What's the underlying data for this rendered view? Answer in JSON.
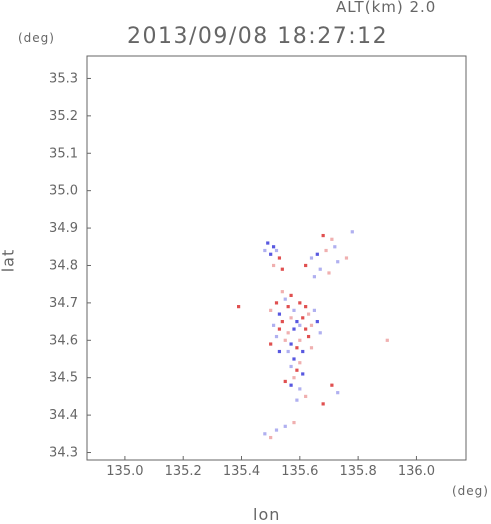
{
  "header": {
    "altitude_label": "ALT(km) 2.0",
    "timestamp": "2013/09/08 18:27:12",
    "y_unit": "(deg)",
    "x_unit": "(deg)"
  },
  "chart_data": {
    "type": "scatter",
    "title": "2013/09/08 18:27:12",
    "subtitle": "ALT(km) 2.0",
    "xlabel": "lon",
    "ylabel": "lat",
    "x_unit": "(deg)",
    "y_unit": "(deg)",
    "xlim": [
      134.87,
      136.17
    ],
    "ylim": [
      34.28,
      35.36
    ],
    "x_ticks": [
      "135.0",
      "135.2",
      "135.4",
      "135.6",
      "135.8",
      "136.0"
    ],
    "y_ticks": [
      "34.3",
      "34.4",
      "34.5",
      "34.6",
      "34.7",
      "34.8",
      "34.9",
      "35.0",
      "35.1",
      "35.2",
      "35.3"
    ],
    "grid": false,
    "colors": {
      "positive": "#e05050",
      "negative": "#5858e0",
      "weak_positive": "#f0b0b0",
      "weak_negative": "#b0b0f0"
    },
    "series": [
      {
        "points": [
          [
            135.49,
            34.86,
            "negative"
          ],
          [
            135.51,
            34.85,
            "negative"
          ],
          [
            135.5,
            34.83,
            "negative"
          ],
          [
            135.52,
            34.84,
            "weak_negative"
          ],
          [
            135.53,
            34.82,
            "positive"
          ],
          [
            135.51,
            34.8,
            "weak_positive"
          ],
          [
            135.54,
            34.79,
            "positive"
          ],
          [
            135.48,
            34.84,
            "weak_negative"
          ],
          [
            135.68,
            34.88,
            "positive"
          ],
          [
            135.71,
            34.87,
            "weak_positive"
          ],
          [
            135.72,
            34.85,
            "weak_negative"
          ],
          [
            135.69,
            34.84,
            "weak_positive"
          ],
          [
            135.66,
            34.83,
            "negative"
          ],
          [
            135.64,
            34.82,
            "weak_negative"
          ],
          [
            135.62,
            34.8,
            "positive"
          ],
          [
            135.67,
            34.79,
            "weak_negative"
          ],
          [
            135.7,
            34.78,
            "weak_positive"
          ],
          [
            135.65,
            34.77,
            "weak_negative"
          ],
          [
            135.73,
            34.81,
            "weak_negative"
          ],
          [
            135.78,
            34.89,
            "weak_negative"
          ],
          [
            135.76,
            34.82,
            "weak_positive"
          ],
          [
            135.39,
            34.69,
            "positive"
          ],
          [
            135.54,
            34.73,
            "weak_positive"
          ],
          [
            135.57,
            34.72,
            "positive"
          ],
          [
            135.55,
            34.71,
            "weak_negative"
          ],
          [
            135.52,
            34.7,
            "positive"
          ],
          [
            135.5,
            34.68,
            "weak_positive"
          ],
          [
            135.53,
            34.67,
            "negative"
          ],
          [
            135.56,
            34.69,
            "positive"
          ],
          [
            135.58,
            34.68,
            "weak_negative"
          ],
          [
            135.6,
            34.7,
            "positive"
          ],
          [
            135.62,
            34.69,
            "positive"
          ],
          [
            135.63,
            34.67,
            "weak_positive"
          ],
          [
            135.65,
            34.68,
            "weak_negative"
          ],
          [
            135.61,
            34.66,
            "positive"
          ],
          [
            135.59,
            34.65,
            "negative"
          ],
          [
            135.57,
            34.66,
            "weak_positive"
          ],
          [
            135.54,
            34.65,
            "positive"
          ],
          [
            135.51,
            34.64,
            "weak_negative"
          ],
          [
            135.53,
            34.63,
            "positive"
          ],
          [
            135.56,
            34.62,
            "weak_positive"
          ],
          [
            135.58,
            34.63,
            "negative"
          ],
          [
            135.6,
            34.64,
            "weak_negative"
          ],
          [
            135.62,
            34.63,
            "positive"
          ],
          [
            135.64,
            34.64,
            "weak_positive"
          ],
          [
            135.66,
            34.65,
            "negative"
          ],
          [
            135.67,
            34.62,
            "weak_negative"
          ],
          [
            135.63,
            34.61,
            "positive"
          ],
          [
            135.6,
            34.6,
            "weak_positive"
          ],
          [
            135.57,
            34.59,
            "negative"
          ],
          [
            135.55,
            34.6,
            "weak_positive"
          ],
          [
            135.52,
            34.61,
            "weak_negative"
          ],
          [
            135.5,
            34.59,
            "positive"
          ],
          [
            135.53,
            34.57,
            "negative"
          ],
          [
            135.56,
            34.57,
            "weak_negative"
          ],
          [
            135.59,
            34.58,
            "positive"
          ],
          [
            135.61,
            34.57,
            "negative"
          ],
          [
            135.64,
            34.58,
            "weak_positive"
          ],
          [
            135.58,
            34.55,
            "negative"
          ],
          [
            135.6,
            34.54,
            "weak_positive"
          ],
          [
            135.57,
            34.53,
            "weak_negative"
          ],
          [
            135.59,
            34.52,
            "positive"
          ],
          [
            135.61,
            34.51,
            "negative"
          ],
          [
            135.58,
            34.5,
            "weak_positive"
          ],
          [
            135.55,
            34.49,
            "positive"
          ],
          [
            135.57,
            34.48,
            "negative"
          ],
          [
            135.6,
            34.47,
            "weak_negative"
          ],
          [
            135.62,
            34.45,
            "weak_positive"
          ],
          [
            135.59,
            34.44,
            "weak_negative"
          ],
          [
            135.71,
            34.48,
            "positive"
          ],
          [
            135.68,
            34.43,
            "positive"
          ],
          [
            135.73,
            34.46,
            "weak_negative"
          ],
          [
            135.9,
            34.6,
            "weak_positive"
          ],
          [
            135.48,
            34.35,
            "weak_negative"
          ],
          [
            135.52,
            34.36,
            "weak_negative"
          ],
          [
            135.55,
            34.37,
            "weak_negative"
          ],
          [
            135.58,
            34.38,
            "weak_positive"
          ],
          [
            135.5,
            34.34,
            "weak_positive"
          ]
        ]
      }
    ]
  }
}
